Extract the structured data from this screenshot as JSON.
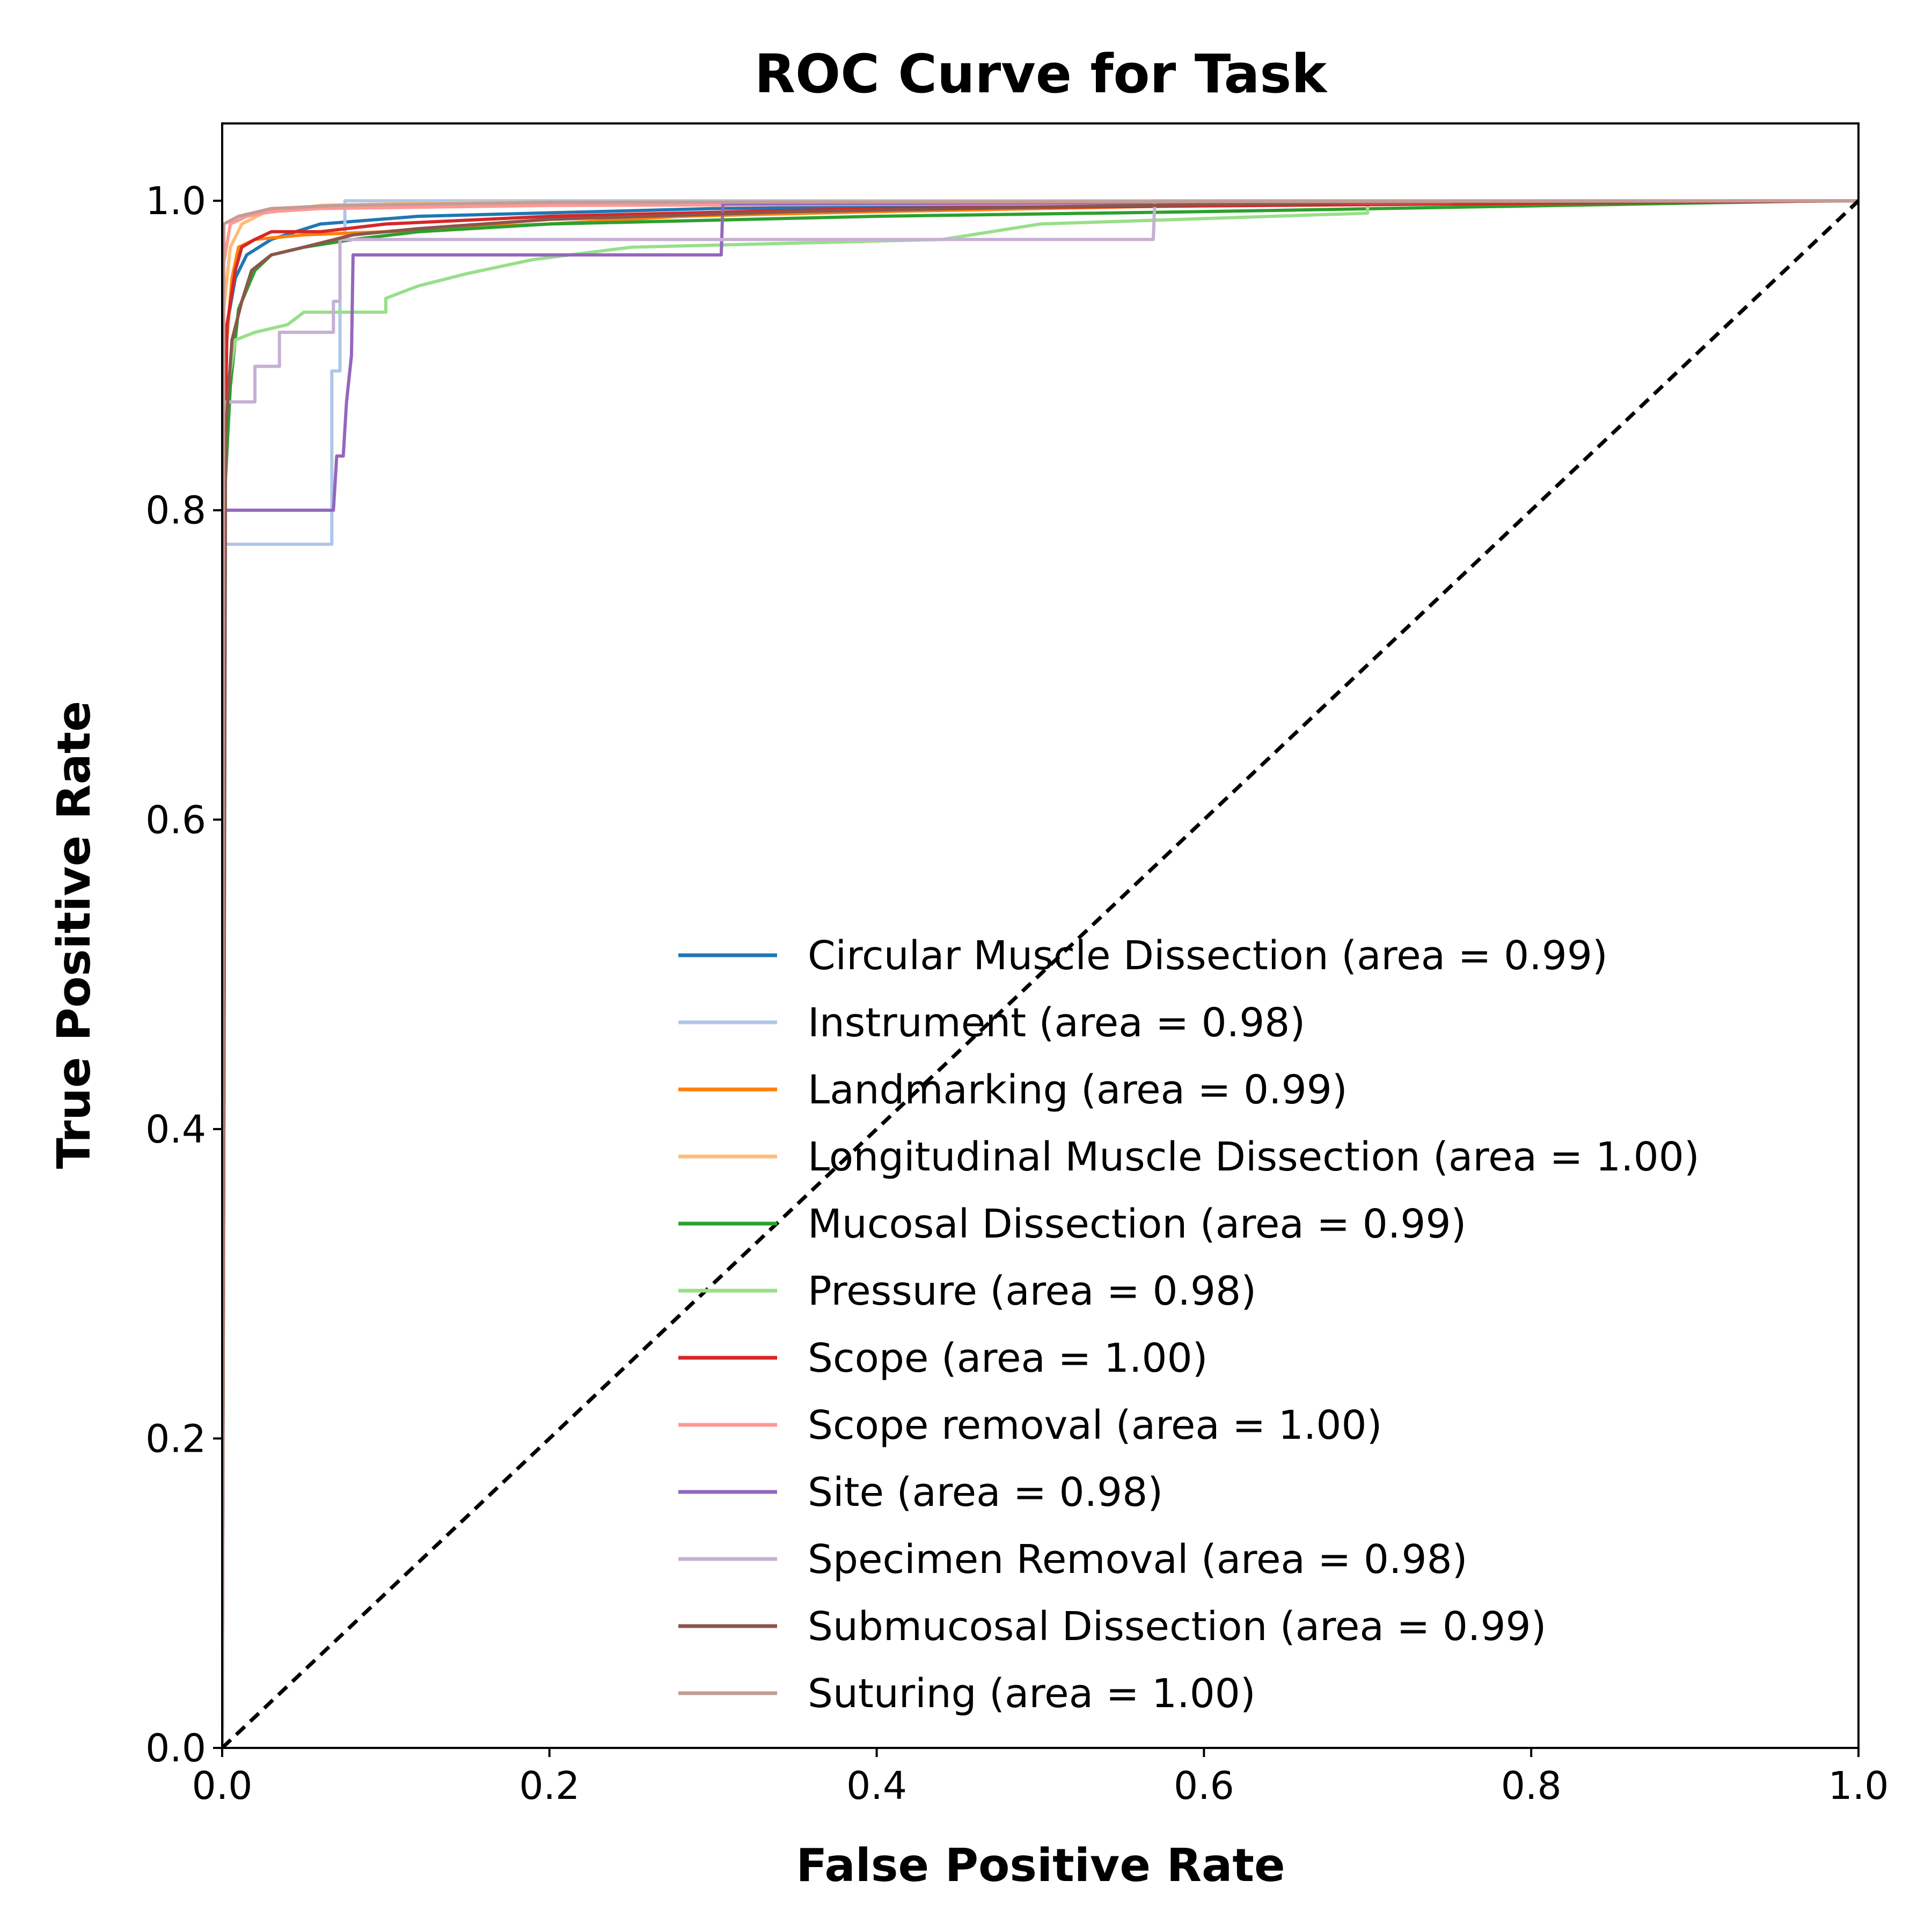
{
  "chart_data": {
    "type": "line",
    "title": "ROC Curve for Task",
    "xlabel": "False Positive Rate",
    "ylabel": "True Positive Rate",
    "xlim": [
      0.0,
      1.0
    ],
    "ylim": [
      0.0,
      1.05
    ],
    "xticks": [
      "0.0",
      "0.2",
      "0.4",
      "0.6",
      "0.8",
      "1.0"
    ],
    "yticks": [
      "0.0",
      "0.2",
      "0.4",
      "0.6",
      "0.8",
      "1.0"
    ],
    "legend_position": "lower-right",
    "series": [
      {
        "name": "Circular Muscle Dissection (area = 0.99)",
        "color": "#1f77b4",
        "points": [
          [
            0,
            0
          ],
          [
            0.001,
            0.85
          ],
          [
            0.003,
            0.92
          ],
          [
            0.008,
            0.95
          ],
          [
            0.015,
            0.965
          ],
          [
            0.03,
            0.975
          ],
          [
            0.06,
            0.985
          ],
          [
            0.12,
            0.99
          ],
          [
            0.3,
            0.995
          ],
          [
            0.6,
            0.998
          ],
          [
            1,
            1
          ]
        ]
      },
      {
        "name": "Instrument (area = 0.98)",
        "color": "#aec7e8",
        "points": [
          [
            0,
            0
          ],
          [
            0.002,
            0.778
          ],
          [
            0.067,
            0.778
          ],
          [
            0.067,
            0.89
          ],
          [
            0.072,
            0.89
          ],
          [
            0.072,
            0.975
          ],
          [
            0.075,
            0.975
          ],
          [
            0.075,
            1.0
          ],
          [
            1,
            1
          ]
        ]
      },
      {
        "name": "Landmarking (area = 0.99)",
        "color": "#ff7f0e",
        "points": [
          [
            0,
            0
          ],
          [
            0.002,
            0.9
          ],
          [
            0.006,
            0.95
          ],
          [
            0.01,
            0.97
          ],
          [
            0.02,
            0.975
          ],
          [
            0.05,
            0.978
          ],
          [
            0.1,
            0.98
          ],
          [
            0.15,
            0.983
          ],
          [
            0.2,
            0.985
          ],
          [
            0.28,
            0.99
          ],
          [
            0.4,
            0.993
          ],
          [
            0.6,
            0.997
          ],
          [
            1,
            1
          ]
        ]
      },
      {
        "name": "Longitudinal Muscle Dissection (area = 1.00)",
        "color": "#ffbb78",
        "points": [
          [
            0,
            0
          ],
          [
            0.001,
            0.93
          ],
          [
            0.005,
            0.97
          ],
          [
            0.012,
            0.985
          ],
          [
            0.025,
            0.992
          ],
          [
            0.06,
            0.997
          ],
          [
            0.15,
            0.999
          ],
          [
            1,
            1
          ]
        ]
      },
      {
        "name": "Mucosal Dissection (area = 0.99)",
        "color": "#2ca02c",
        "points": [
          [
            0,
            0
          ],
          [
            0.002,
            0.82
          ],
          [
            0.005,
            0.88
          ],
          [
            0.01,
            0.93
          ],
          [
            0.02,
            0.955
          ],
          [
            0.03,
            0.965
          ],
          [
            0.05,
            0.97
          ],
          [
            0.08,
            0.975
          ],
          [
            0.12,
            0.98
          ],
          [
            0.2,
            0.985
          ],
          [
            0.4,
            0.99
          ],
          [
            0.6,
            0.993
          ],
          [
            0.98,
            1.0
          ],
          [
            1,
            1
          ]
        ]
      },
      {
        "name": "Pressure (area = 0.98)",
        "color": "#98df8a",
        "points": [
          [
            0,
            0
          ],
          [
            0.002,
            0.87
          ],
          [
            0.008,
            0.91
          ],
          [
            0.02,
            0.915
          ],
          [
            0.04,
            0.92
          ],
          [
            0.05,
            0.928
          ],
          [
            0.1,
            0.928
          ],
          [
            0.1,
            0.937
          ],
          [
            0.12,
            0.945
          ],
          [
            0.15,
            0.953
          ],
          [
            0.19,
            0.962
          ],
          [
            0.25,
            0.97
          ],
          [
            0.44,
            0.975
          ],
          [
            0.5,
            0.985
          ],
          [
            0.7,
            0.992
          ],
          [
            0.7,
            0.998
          ],
          [
            1,
            1
          ]
        ]
      },
      {
        "name": "Scope (area = 1.00)",
        "color": "#d62728",
        "points": [
          [
            0,
            0
          ],
          [
            0.001,
            0.8
          ],
          [
            0.003,
            0.92
          ],
          [
            0.008,
            0.955
          ],
          [
            0.012,
            0.97
          ],
          [
            0.02,
            0.975
          ],
          [
            0.03,
            0.98
          ],
          [
            0.06,
            0.98
          ],
          [
            0.1,
            0.985
          ],
          [
            0.2,
            0.99
          ],
          [
            0.4,
            0.995
          ],
          [
            1,
            1
          ]
        ]
      },
      {
        "name": "Scope removal (area = 1.00)",
        "color": "#ff9896",
        "points": [
          [
            0,
            0
          ],
          [
            0.001,
            0.96
          ],
          [
            0.005,
            0.985
          ],
          [
            0.015,
            0.99
          ],
          [
            0.03,
            0.993
          ],
          [
            0.06,
            0.995
          ],
          [
            0.2,
            0.997
          ],
          [
            0.5,
            0.998
          ],
          [
            0.75,
            0.999
          ],
          [
            0.76,
            1.0
          ],
          [
            1,
            1
          ]
        ]
      },
      {
        "name": "Site (area = 0.98)",
        "color": "#9467bd",
        "points": [
          [
            0,
            0
          ],
          [
            0.002,
            0.8
          ],
          [
            0.068,
            0.8
          ],
          [
            0.07,
            0.835
          ],
          [
            0.074,
            0.835
          ],
          [
            0.076,
            0.87
          ],
          [
            0.079,
            0.9
          ],
          [
            0.08,
            0.965
          ],
          [
            0.305,
            0.965
          ],
          [
            0.306,
            0.998
          ],
          [
            1,
            1
          ]
        ]
      },
      {
        "name": "Specimen Removal (area = 0.98)",
        "color": "#c5b0d5",
        "points": [
          [
            0,
            0
          ],
          [
            0.002,
            0.87
          ],
          [
            0.02,
            0.87
          ],
          [
            0.02,
            0.893
          ],
          [
            0.035,
            0.893
          ],
          [
            0.035,
            0.915
          ],
          [
            0.068,
            0.915
          ],
          [
            0.068,
            0.935
          ],
          [
            0.072,
            0.935
          ],
          [
            0.072,
            0.975
          ],
          [
            0.569,
            0.975
          ],
          [
            0.57,
            1.0
          ],
          [
            1,
            1
          ]
        ]
      },
      {
        "name": "Submucosal Dissection (area = 0.99)",
        "color": "#8c564b",
        "points": [
          [
            0,
            0
          ],
          [
            0.002,
            0.85
          ],
          [
            0.006,
            0.91
          ],
          [
            0.012,
            0.935
          ],
          [
            0.018,
            0.955
          ],
          [
            0.03,
            0.965
          ],
          [
            0.05,
            0.97
          ],
          [
            0.08,
            0.978
          ],
          [
            0.12,
            0.982
          ],
          [
            0.2,
            0.988
          ],
          [
            0.35,
            0.993
          ],
          [
            0.5,
            0.996
          ],
          [
            0.7,
            0.999
          ],
          [
            1,
            1
          ]
        ]
      },
      {
        "name": "Suturing (area = 1.00)",
        "color": "#c49c94",
        "points": [
          [
            0,
            0
          ],
          [
            0.001,
            0.985
          ],
          [
            0.01,
            0.99
          ],
          [
            0.03,
            0.995
          ],
          [
            0.07,
            0.997
          ],
          [
            0.2,
            0.999
          ],
          [
            1,
            1
          ]
        ]
      },
      {
        "name": "",
        "color": "#000000",
        "dashed": true,
        "points": [
          [
            0,
            0
          ],
          [
            1,
            1
          ]
        ]
      }
    ]
  }
}
